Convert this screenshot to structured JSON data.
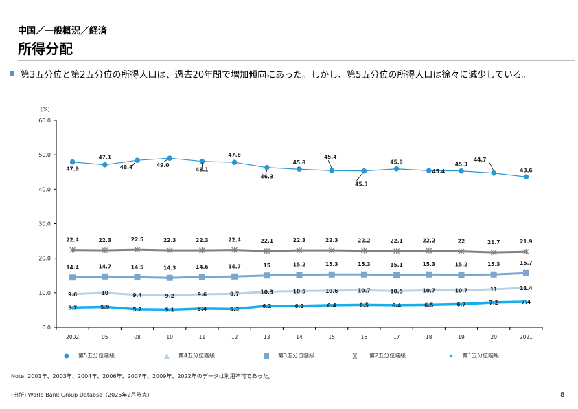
{
  "header": {
    "breadcrumb": "中国／一般概況／経済",
    "title": "所得分配"
  },
  "summary": "第3五分位と第2五分位の所得人口は、過去20年間で増加傾向にあった。しかし、第5五分位の所得人口は徐々に減少している。",
  "chart_data": {
    "type": "line",
    "ylabel": "（%）",
    "ylim": [
      0,
      60
    ],
    "yticks": [
      "0.0",
      "10.0",
      "20.0",
      "30.0",
      "40.0",
      "50.0",
      "60.0"
    ],
    "grid": false,
    "legend_position": "bottom",
    "categories": [
      "2002",
      "05",
      "08",
      "10",
      "11",
      "12",
      "13",
      "14",
      "15",
      "16",
      "17",
      "18",
      "19",
      "20",
      "2021"
    ],
    "series": [
      {
        "name": "第5五分位階級",
        "marker": "circle",
        "color": "#2e96d2",
        "labels": [
          "47.9",
          "47.1",
          "48.4",
          "49.0",
          "48.1",
          "47.8",
          "46.3",
          "45.8",
          "45.4",
          "45.3",
          "45.9",
          "45.4",
          "45.3",
          "44.7",
          "43.6"
        ],
        "values": [
          47.9,
          47.1,
          48.4,
          49.0,
          48.1,
          47.8,
          46.3,
          45.8,
          45.4,
          45.3,
          45.9,
          45.4,
          45.3,
          44.7,
          43.6
        ]
      },
      {
        "name": "第4五分位階級",
        "marker": "triangle",
        "color": "#b7d2e4",
        "labels": [
          "9.6",
          "10",
          "9.4",
          "9.2",
          "9.6",
          "9.7",
          "10.3",
          "10.5",
          "10.6",
          "10.7",
          "10.5",
          "10.7",
          "10.7",
          "11",
          "11.4"
        ],
        "values": [
          9.6,
          10,
          9.4,
          9.2,
          9.6,
          9.7,
          10.3,
          10.5,
          10.6,
          10.7,
          10.5,
          10.7,
          10.7,
          11,
          11.4
        ]
      },
      {
        "name": "第3五分位階級",
        "marker": "square",
        "color": "#7aa6cf",
        "labels": [
          "14.4",
          "14.7",
          "14.5",
          "14.3",
          "14.6",
          "14.7",
          "15",
          "15.2",
          "15.3",
          "15.3",
          "15.1",
          "15.3",
          "15.2",
          "15.3",
          "15.7"
        ],
        "values": [
          14.4,
          14.7,
          14.5,
          14.3,
          14.6,
          14.7,
          15,
          15.2,
          15.3,
          15.3,
          15.1,
          15.3,
          15.2,
          15.3,
          15.7
        ]
      },
      {
        "name": "第2五分位階級",
        "marker": "x",
        "color": "#808080",
        "labels": [
          "22.4",
          "22.3",
          "22.5",
          "22.3",
          "22.3",
          "22.4",
          "22.1",
          "22.3",
          "22.3",
          "22.2",
          "22.1",
          "22.2",
          "22",
          "21.7",
          "21.9"
        ],
        "values": [
          22.4,
          22.3,
          22.5,
          22.3,
          22.3,
          22.4,
          22.1,
          22.3,
          22.3,
          22.2,
          22.1,
          22.2,
          22,
          21.7,
          21.9
        ]
      },
      {
        "name": "第1五分位階級",
        "marker": "star",
        "color": "#14aef0",
        "labels": [
          "5.7",
          "5.9",
          "5.2",
          "5.1",
          "5.4",
          "5.3",
          "6.2",
          "6.2",
          "6.4",
          "6.5",
          "6.4",
          "6.5",
          "6.7",
          "7.2",
          "7.4"
        ],
        "values": [
          5.7,
          5.9,
          5.2,
          5.1,
          5.4,
          5.3,
          6.2,
          6.2,
          6.4,
          6.5,
          6.4,
          6.5,
          6.7,
          7.2,
          7.4
        ]
      }
    ]
  },
  "legend": [
    "第5五分位階級",
    "第4五分位階級",
    "第3五分位階級",
    "第2五分位階級",
    "第1五分位階級"
  ],
  "note": "Note: 2001年、2003年、2004年、2006年、2007年、2009年、2022年のデータは利用不可であった。",
  "source": "(出所) World Bank Group Databse（2025年2月時点）",
  "page_number": "8"
}
